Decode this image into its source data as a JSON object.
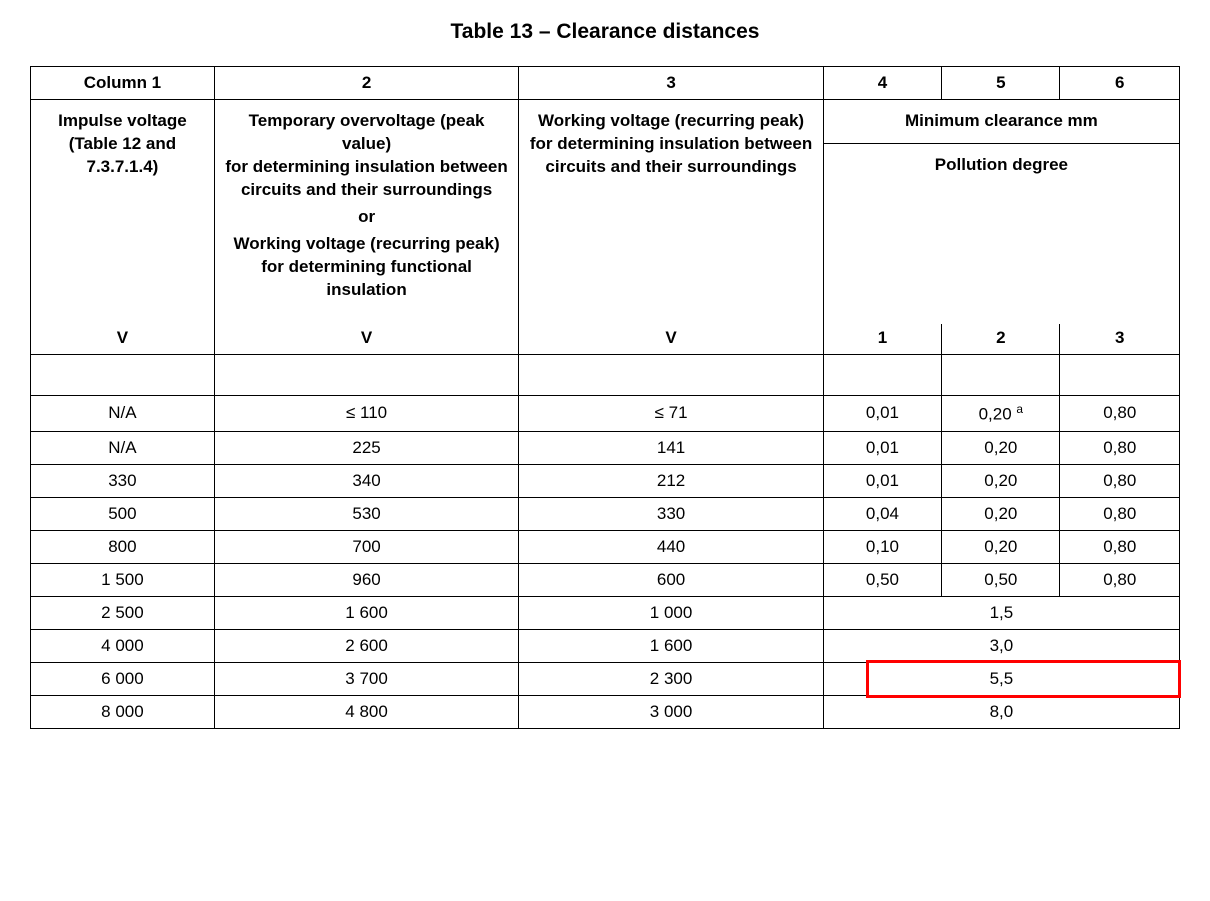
{
  "title": "Table 13 – Clearance distances",
  "columns": {
    "c1": "Column 1",
    "c2": "2",
    "c3": "3",
    "c4": "4",
    "c5": "5",
    "c6": "6"
  },
  "descriptions": {
    "d1": "Impulse voltage (Table 12 and 7.3.7.1.4)",
    "d2_line1": "Temporary overvoltage (peak value)",
    "d2_line2": "for determining insulation between circuits and their surroundings",
    "d2_or": "or",
    "d2_line3": "Working voltage (recurring peak)",
    "d2_line4": "for determining functional insulation",
    "d3_line1": "Working voltage (recurring peak)",
    "d3_line2": "for determining insulation between circuits and their surroundings",
    "d456_top": "Minimum clearance mm",
    "d456_bot": "Pollution degree"
  },
  "units": {
    "u1": "V",
    "u2": "V",
    "u3": "V",
    "u4": "1",
    "u5": "2",
    "u6": "3"
  },
  "rows": [
    {
      "c1": "N/A",
      "c2": "≤ 110",
      "c3": "≤ 71",
      "c4": "0,01",
      "c5": "0,20",
      "c5_sup": "a",
      "c6": "0,80"
    },
    {
      "c1": "N/A",
      "c2": "225",
      "c3": "141",
      "c4": "0,01",
      "c5": "0,20",
      "c6": "0,80"
    },
    {
      "c1": "330",
      "c2": "340",
      "c3": "212",
      "c4": "0,01",
      "c5": "0,20",
      "c6": "0,80"
    },
    {
      "c1": "500",
      "c2": "530",
      "c3": "330",
      "c4": "0,04",
      "c5": "0,20",
      "c6": "0,80"
    },
    {
      "c1": "800",
      "c2": "700",
      "c3": "440",
      "c4": "0,10",
      "c5": "0,20",
      "c6": "0,80"
    },
    {
      "c1": "1 500",
      "c2": "960",
      "c3": "600",
      "c4": "0,50",
      "c5": "0,50",
      "c6": "0,80"
    },
    {
      "c1": "2 500",
      "c2": "1 600",
      "c3": "1 000",
      "merged": "1,5"
    },
    {
      "c1": "4 000",
      "c2": "2 600",
      "c3": "1 600",
      "merged": "3,0"
    },
    {
      "c1": "6 000",
      "c2": "3 700",
      "c3": "2 300",
      "merged": "5,5",
      "highlight": true
    },
    {
      "c1": "8 000",
      "c2": "4 800",
      "c3": "3 000",
      "merged": "8,0"
    }
  ],
  "style": {
    "highlight_color": "#ff0000",
    "border_color": "#000000",
    "background_color": "#ffffff",
    "text_color": "#000000",
    "font_family": "Arial",
    "title_fontsize": 21,
    "body_fontsize": 17,
    "col_widths_percent": [
      16,
      26.5,
      26.5,
      10.3,
      10.3,
      10.4
    ]
  }
}
